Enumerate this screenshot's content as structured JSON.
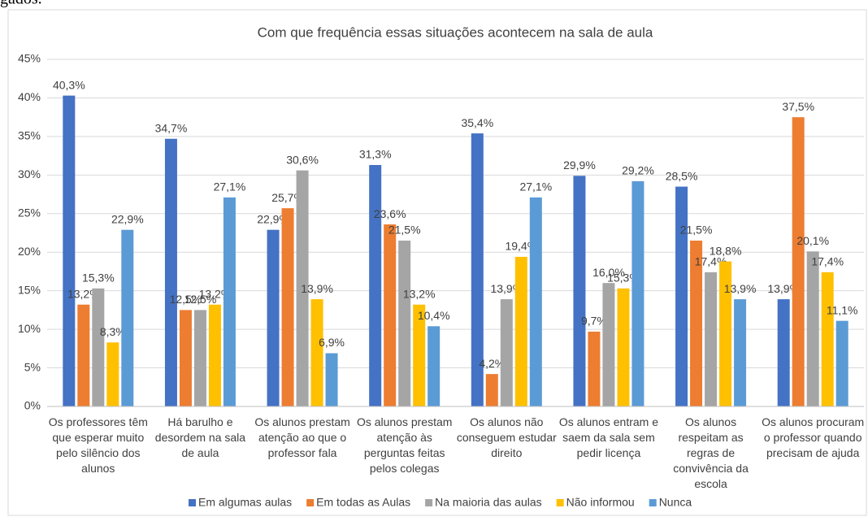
{
  "page_text": "gados.",
  "chart_data": {
    "type": "bar",
    "title": "Com que frequência essas situações acontecem na sala de aula",
    "categories": [
      "Os professores têm que esperar muito pelo silêncio dos alunos",
      "Há barulho e desordem na sala de aula",
      "Os alunos prestam atenção ao que o professor fala",
      "Os alunos prestam atenção às perguntas feitas pelos colegas",
      "Os alunos não conseguem estudar direito",
      "Os alunos entram e saem da sala sem pedir licença",
      "Os alunos respeitam as regras de convivência da escola",
      "Os alunos procuram o professor quando precisam de ajuda"
    ],
    "series": [
      {
        "name": "Em algumas aulas",
        "color": "#4472c4",
        "values": [
          40.3,
          34.7,
          22.9,
          31.3,
          35.4,
          29.9,
          28.5,
          13.9
        ],
        "value_labels": [
          "40,3%",
          "34,7%",
          "22,9%",
          "31,3%",
          "35,4%",
          "29,9%",
          "28,5%",
          "13,9%"
        ]
      },
      {
        "name": "Em todas as Aulas",
        "color": "#ed7d31",
        "values": [
          13.2,
          12.5,
          25.7,
          23.6,
          4.2,
          9.7,
          21.5,
          37.5
        ],
        "value_labels": [
          "13,2%",
          "12,5%",
          "25,7%",
          "23,6%",
          "4,2%",
          "9,7%",
          "21,5%",
          "37,5%"
        ]
      },
      {
        "name": "Na maioria das aulas",
        "color": "#a5a5a5",
        "values": [
          15.3,
          12.5,
          30.6,
          21.5,
          13.9,
          16.0,
          17.4,
          20.1
        ],
        "value_labels": [
          "15,3%",
          "12,5%",
          "30,6%",
          "21,5%",
          "13,9%",
          "16,0%",
          "17,4%",
          "20,1%"
        ]
      },
      {
        "name": "Não informou",
        "color": "#ffc000",
        "values": [
          8.3,
          13.2,
          13.9,
          13.2,
          19.4,
          15.3,
          18.8,
          17.4
        ],
        "value_labels": [
          "8,3%",
          "13,2%",
          "13,9%",
          "13,2%",
          "19,4%",
          "15,3%",
          "18,8%",
          "17,4%"
        ]
      },
      {
        "name": "Nunca",
        "color": "#5b9bd5",
        "values": [
          22.9,
          27.1,
          6.9,
          10.4,
          27.1,
          29.2,
          13.9,
          11.1
        ],
        "value_labels": [
          "22,9%",
          "27,1%",
          "6,9%",
          "10,4%",
          "27,1%",
          "29,2%",
          "13,9%",
          "11,1%"
        ]
      }
    ],
    "ylim": [
      0,
      45
    ],
    "yticks": [
      {
        "value": 0,
        "label": "0%"
      },
      {
        "value": 5,
        "label": "5%"
      },
      {
        "value": 10,
        "label": "10%"
      },
      {
        "value": 15,
        "label": "15%"
      },
      {
        "value": 20,
        "label": "20%"
      },
      {
        "value": 25,
        "label": "25%"
      },
      {
        "value": 30,
        "label": "30%"
      },
      {
        "value": 35,
        "label": "35%"
      },
      {
        "value": 40,
        "label": "40%"
      },
      {
        "value": 45,
        "label": "45%"
      }
    ],
    "grid": true,
    "legend": "bottom"
  }
}
